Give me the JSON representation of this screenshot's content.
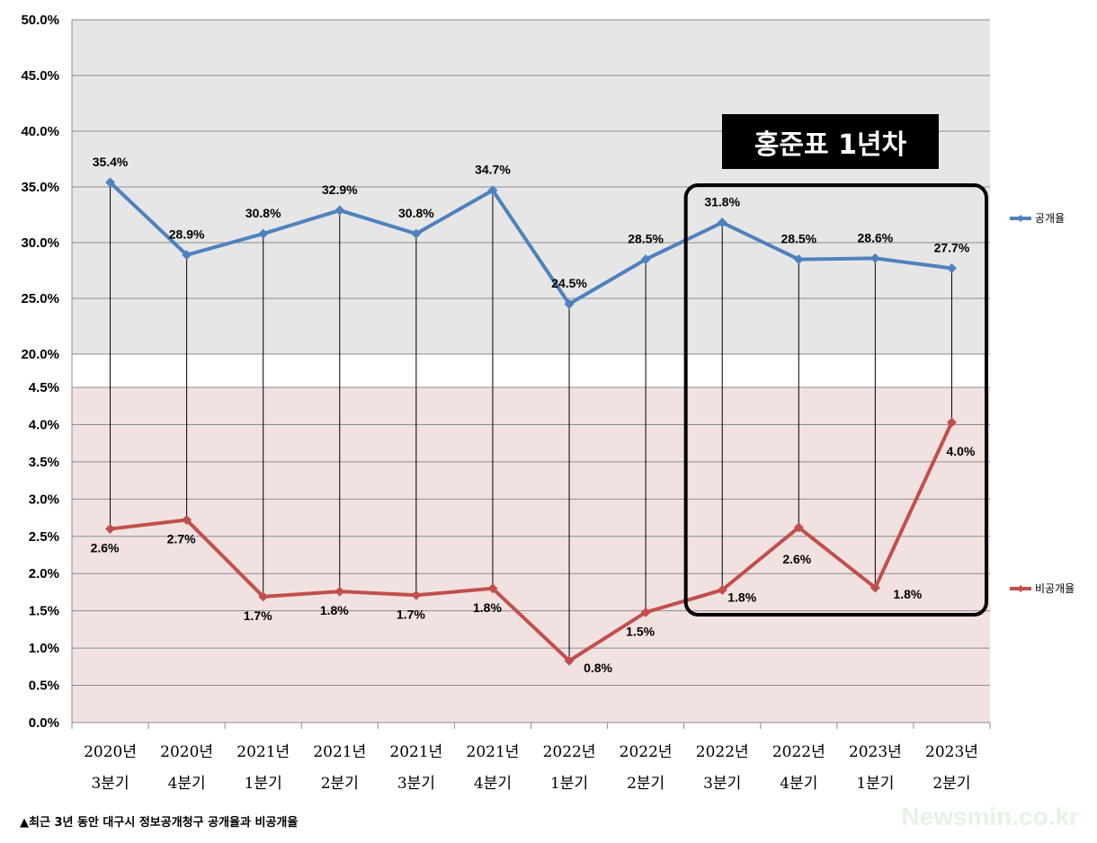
{
  "chart_data": [
    {
      "type": "line",
      "panel": "upper",
      "ylim": [
        20.0,
        50.0
      ],
      "yticks": [
        "20.0%",
        "25.0%",
        "30.0%",
        "35.0%",
        "40.0%",
        "45.0%",
        "50.0%"
      ],
      "series": [
        {
          "name": "공개율",
          "color": "#4f81bd",
          "values": [
            35.4,
            28.9,
            30.8,
            32.9,
            30.8,
            34.7,
            24.5,
            28.5,
            31.8,
            28.5,
            28.6,
            27.7
          ],
          "labels": [
            "35.4%",
            "28.9%",
            "30.8%",
            "32.9%",
            "30.8%",
            "34.7%",
            "24.5%",
            "28.5%",
            "31.8%",
            "28.5%",
            "28.6%",
            "27.7%"
          ]
        }
      ],
      "background": "#e6e6e6",
      "grid": true
    },
    {
      "type": "line",
      "panel": "lower",
      "ylim": [
        0.0,
        4.5
      ],
      "yticks": [
        "0.0%",
        "0.5%",
        "1.0%",
        "1.5%",
        "2.0%",
        "2.5%",
        "3.0%",
        "3.5%",
        "4.0%",
        "4.5%"
      ],
      "series": [
        {
          "name": "비공개율",
          "color": "#c0504d",
          "values": [
            2.6,
            2.72,
            1.69,
            1.76,
            1.71,
            1.8,
            0.83,
            1.48,
            1.78,
            2.62,
            1.81,
            4.03
          ],
          "labels": [
            "2.6%",
            "2.7%",
            "1.7%",
            "1.8%",
            "1.7%",
            "1.8%",
            "0.8%",
            "1.5%",
            "1.8%",
            "2.6%",
            "1.8%",
            "4.0%"
          ]
        }
      ],
      "background": "#f2e1e1",
      "grid": true
    }
  ],
  "categories": [
    [
      "2020년",
      "3분기"
    ],
    [
      "2020년",
      "4분기"
    ],
    [
      "2021년",
      "1분기"
    ],
    [
      "2021년",
      "2분기"
    ],
    [
      "2021년",
      "3분기"
    ],
    [
      "2021년",
      "4분기"
    ],
    [
      "2022년",
      "1분기"
    ],
    [
      "2022년",
      "2분기"
    ],
    [
      "2022년",
      "3분기"
    ],
    [
      "2022년",
      "4분기"
    ],
    [
      "2023년",
      "1분기"
    ],
    [
      "2023년",
      "2분기"
    ]
  ],
  "highlight": {
    "label": "홍준표 1년차",
    "from_category": 8,
    "to_category": 11
  },
  "legend": [
    "공개율",
    "비공개율"
  ],
  "caption": "▲최근 3년 동안 대구시 정보공개청구 공개율과 비공개율",
  "watermark": "Newsmin.co.kr"
}
